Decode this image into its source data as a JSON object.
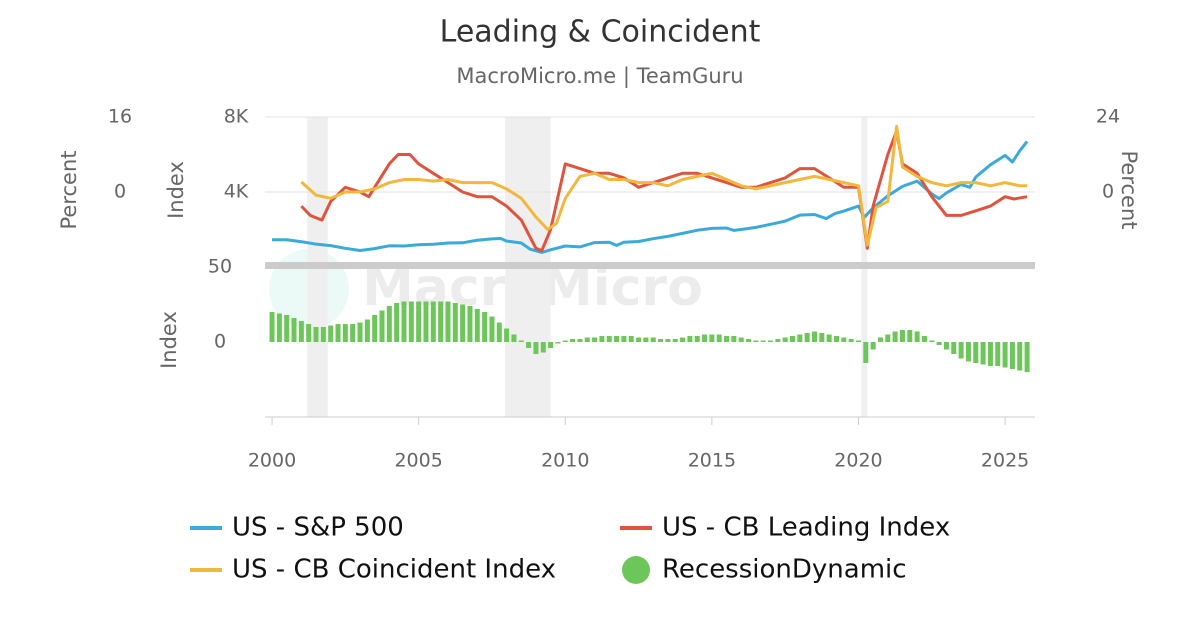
{
  "chart_data": {
    "type": "combo",
    "title": "Leading & Coincident",
    "subtitle": "MacroMicro.me | TeamGuru",
    "watermark": "MacroMicro",
    "xlim": [
      1999.76,
      2026.02
    ],
    "xticks": [
      2000,
      2005,
      2010,
      2015,
      2020,
      2025
    ],
    "ylim": [
      0,
      8000
    ],
    "yticks": [
      {
        "value": 4000,
        "label": "4K"
      },
      {
        "value": 8000,
        "label": "8K"
      }
    ],
    "y_label": "Index",
    "y2lim": [
      -24,
      24
    ],
    "y2ticks": [
      0,
      24
    ],
    "y2_label": "Percent",
    "y3lim": [
      -16,
      16
    ],
    "y3ticks": [
      0,
      16
    ],
    "y3_label": "Percent",
    "y4lim": [
      -50,
      50
    ],
    "y4ticks": [
      0,
      50
    ],
    "y4_label": "Index",
    "grid": true,
    "recessions": [
      {
        "start": 2001.2,
        "end": 2001.9
      },
      {
        "start": 2007.95,
        "end": 2009.5
      },
      {
        "start": 2020.1,
        "end": 2020.3
      }
    ],
    "series": [
      {
        "name": "US - S&P 500",
        "color": "#3ba9d9",
        "axis": "y",
        "kind": "line",
        "x": [
          2000,
          2000.5,
          2001,
          2001.5,
          2002,
          2002.5,
          2003,
          2003.5,
          2004,
          2004.5,
          2005,
          2005.5,
          2006,
          2006.5,
          2007,
          2007.5,
          2007.8,
          2008,
          2008.5,
          2008.8,
          2009.2,
          2009.5,
          2010,
          2010.5,
          2011,
          2011.5,
          2011.75,
          2012,
          2012.5,
          2013,
          2013.5,
          2014,
          2014.5,
          2015,
          2015.5,
          2015.75,
          2016,
          2016.5,
          2017,
          2017.5,
          2018,
          2018.5,
          2018.9,
          2019.2,
          2019.5,
          2020,
          2020.2,
          2020.5,
          2021,
          2021.5,
          2022,
          2022.5,
          2022.75,
          2023,
          2023.5,
          2023.8,
          2024,
          2024.5,
          2025,
          2025.25,
          2025.5,
          2025.75
        ],
        "values": [
          1450,
          1450,
          1350,
          1220,
          1140,
          1000,
          880,
          980,
          1130,
          1120,
          1190,
          1210,
          1280,
          1290,
          1430,
          1500,
          1520,
          1380,
          1280,
          950,
          780,
          920,
          1120,
          1070,
          1300,
          1320,
          1150,
          1320,
          1360,
          1510,
          1630,
          1790,
          1960,
          2060,
          2080,
          1950,
          2000,
          2110,
          2280,
          2450,
          2770,
          2800,
          2580,
          2850,
          2980,
          3250,
          2650,
          3150,
          3800,
          4300,
          4580,
          3900,
          3650,
          3950,
          4400,
          4250,
          4800,
          5450,
          5950,
          5600,
          6200,
          6700
        ]
      },
      {
        "name": "US - CB Leading Index",
        "color": "#e0533c",
        "axis": "y3",
        "kind": "line",
        "x": [
          2001,
          2001.3,
          2001.7,
          2002,
          2002.5,
          2003,
          2003.3,
          2003.7,
          2004,
          2004.3,
          2004.7,
          2005,
          2005.5,
          2006,
          2006.5,
          2007,
          2007.5,
          2008,
          2008.5,
          2009,
          2009.2,
          2009.5,
          2010,
          2010.5,
          2011,
          2011.5,
          2012,
          2012.5,
          2013,
          2013.5,
          2014,
          2014.5,
          2015,
          2015.5,
          2016,
          2016.5,
          2017,
          2017.5,
          2018,
          2018.5,
          2019,
          2019.5,
          2020,
          2020.3,
          2020.5,
          2021,
          2021.3,
          2021.5,
          2022,
          2022.5,
          2023,
          2023.5,
          2024,
          2024.5,
          2025,
          2025.3,
          2025.75
        ],
        "values": [
          -3,
          -5,
          -6,
          -2,
          1,
          0,
          -1,
          3,
          6,
          8,
          8,
          6,
          4,
          2,
          0,
          -1,
          -1,
          -3,
          -6,
          -12,
          -12.5,
          -8,
          6,
          5,
          4,
          4,
          3,
          1,
          2,
          3,
          4,
          4,
          3,
          2,
          1,
          1,
          2,
          3,
          5,
          5,
          3,
          1,
          1,
          -12,
          -3,
          8,
          13,
          6,
          4,
          -1,
          -5,
          -5,
          -4,
          -3,
          -1,
          -1.5,
          -1
        ]
      },
      {
        "name": "US - CB Coincident Index",
        "color": "#f2b73d",
        "axis": "y2",
        "kind": "line",
        "x": [
          2001,
          2001.5,
          2002,
          2002.5,
          2003,
          2003.5,
          2004,
          2004.5,
          2005,
          2005.5,
          2006,
          2006.5,
          2007,
          2007.5,
          2008,
          2008.5,
          2009,
          2009.4,
          2009.7,
          2010,
          2010.5,
          2011,
          2011.5,
          2012,
          2012.5,
          2013,
          2013.5,
          2014,
          2014.5,
          2015,
          2015.5,
          2016,
          2016.5,
          2017,
          2017.5,
          2018,
          2018.5,
          2019,
          2019.5,
          2020,
          2020.3,
          2020.6,
          2021,
          2021.3,
          2021.5,
          2022,
          2022.5,
          2023,
          2023.5,
          2024,
          2024.5,
          2025,
          2025.5,
          2025.75
        ],
        "values": [
          3.2,
          -1,
          -2,
          0,
          0,
          1,
          3,
          4,
          4,
          3.5,
          4,
          3,
          3,
          3,
          1,
          -2,
          -8,
          -12,
          -10,
          -2,
          5,
          6,
          4,
          4,
          3,
          3,
          2,
          4,
          5,
          6,
          4,
          2,
          1,
          2,
          3,
          4,
          5,
          4,
          3,
          2,
          -17,
          -5,
          -3,
          21,
          8,
          5,
          3,
          2,
          3,
          3,
          2,
          3,
          2,
          2
        ]
      },
      {
        "name": "RecessionDynamic",
        "color": "#6cc65a",
        "axis": "y4",
        "kind": "bar",
        "x": [
          2000,
          2000.25,
          2000.5,
          2000.75,
          2001,
          2001.25,
          2001.5,
          2001.75,
          2002,
          2002.25,
          2002.5,
          2002.75,
          2003,
          2003.25,
          2003.5,
          2003.75,
          2004,
          2004.25,
          2004.5,
          2004.75,
          2005,
          2005.25,
          2005.5,
          2005.75,
          2006,
          2006.25,
          2006.5,
          2006.75,
          2007,
          2007.25,
          2007.5,
          2007.75,
          2008,
          2008.25,
          2008.5,
          2008.75,
          2009,
          2009.25,
          2009.5,
          2009.75,
          2010,
          2010.25,
          2010.5,
          2010.75,
          2011,
          2011.25,
          2011.5,
          2011.75,
          2012,
          2012.25,
          2012.5,
          2012.75,
          2013,
          2013.25,
          2013.5,
          2013.75,
          2014,
          2014.25,
          2014.5,
          2014.75,
          2015,
          2015.25,
          2015.5,
          2015.75,
          2016,
          2016.25,
          2016.5,
          2016.75,
          2017,
          2017.25,
          2017.5,
          2017.75,
          2018,
          2018.25,
          2018.5,
          2018.75,
          2019,
          2019.25,
          2019.5,
          2019.75,
          2020,
          2020.25,
          2020.5,
          2020.75,
          2021,
          2021.25,
          2021.5,
          2021.75,
          2022,
          2022.25,
          2022.5,
          2022.75,
          2023,
          2023.25,
          2023.5,
          2023.75,
          2024,
          2024.25,
          2024.5,
          2024.75,
          2025,
          2025.25,
          2025.5,
          2025.75
        ],
        "values": [
          20,
          19,
          18,
          16,
          14,
          12,
          10,
          10,
          11,
          12,
          12,
          12,
          13,
          15,
          18,
          21,
          24,
          26,
          27,
          27,
          27,
          27,
          27,
          27,
          27,
          26,
          25,
          24,
          22,
          20,
          17,
          13,
          9,
          5,
          1,
          -4,
          -8,
          -7,
          -4,
          -1,
          1,
          2,
          2,
          3,
          3,
          4,
          4,
          4,
          4,
          4,
          3,
          3,
          3,
          2,
          2,
          2,
          3,
          4,
          4,
          5,
          5,
          5,
          4,
          4,
          3,
          2,
          1,
          1,
          1,
          2,
          3,
          4,
          5,
          6,
          7,
          6,
          5,
          4,
          3,
          2,
          1,
          -14,
          -5,
          3,
          5,
          7,
          8,
          8,
          7,
          4,
          1,
          -2,
          -5,
          -8,
          -11,
          -13,
          -14,
          -15,
          -16,
          -16,
          -17,
          -18,
          -19,
          -20
        ]
      }
    ]
  }
}
